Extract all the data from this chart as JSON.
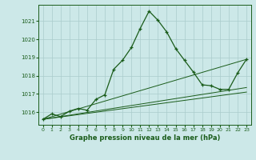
{
  "background_color": "#cce8e8",
  "grid_color": "#aacccc",
  "line_color": "#1a5c1a",
  "title": "Graphe pression niveau de la mer (hPa)",
  "ylim": [
    1015.3,
    1021.9
  ],
  "yticks": [
    1016,
    1017,
    1018,
    1019,
    1020,
    1021
  ],
  "xticks": [
    0,
    1,
    2,
    3,
    4,
    5,
    6,
    7,
    8,
    9,
    10,
    11,
    12,
    13,
    14,
    15,
    16,
    17,
    18,
    19,
    20,
    21,
    22,
    23
  ],
  "main_line_x": [
    0,
    1,
    2,
    3,
    4,
    5,
    6,
    7,
    8,
    9,
    10,
    11,
    12,
    13,
    14,
    15,
    16,
    17,
    18,
    19,
    20,
    21,
    22,
    23
  ],
  "main_line_y": [
    1015.6,
    1015.9,
    1015.75,
    1016.05,
    1016.2,
    1016.1,
    1016.7,
    1016.95,
    1018.35,
    1018.85,
    1019.55,
    1020.6,
    1021.55,
    1021.05,
    1020.4,
    1019.5,
    1018.85,
    1018.2,
    1017.5,
    1017.45,
    1017.25,
    1017.25,
    1018.15,
    1018.9
  ],
  "straight_lines": [
    {
      "x": [
        0,
        23
      ],
      "y": [
        1015.6,
        1018.9
      ]
    },
    {
      "x": [
        0,
        23
      ],
      "y": [
        1015.6,
        1017.35
      ]
    },
    {
      "x": [
        0,
        23
      ],
      "y": [
        1015.6,
        1017.1
      ]
    }
  ]
}
